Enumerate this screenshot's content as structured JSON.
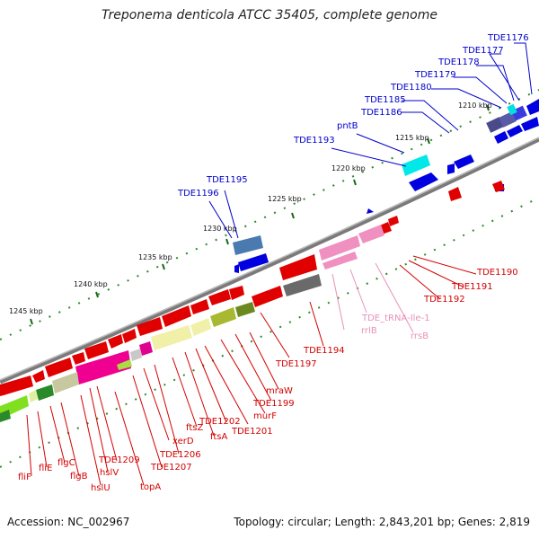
{
  "title": "Treponema denticola ATCC 35405, complete genome",
  "footer": {
    "accession": "Accession: NC_002967",
    "topology": "Topology: circular; Length: 2,843,201 bp; Genes: 2,819"
  },
  "map": {
    "kbp_ticks": [
      "1210 kbp",
      "1215 kbp",
      "1220 kbp",
      "1225 kbp",
      "1230 kbp",
      "1235 kbp",
      "1240 kbp",
      "1245 kbp"
    ],
    "colors": {
      "backbone": "#888888",
      "ruler": "#2a8a2a",
      "forward_label": "#0000cc",
      "reverse_label": "#d40000",
      "rna_label": "#e890b8"
    },
    "labels_top": [
      "TDE1176",
      "TDE1177",
      "TDE1178",
      "TDE1179",
      "TDE1180",
      "TDE1185",
      "TDE1186",
      "pntB",
      "TDE1193",
      "TDE1195",
      "TDE1196"
    ],
    "labels_bottom": [
      "TDE1190",
      "TDE1191",
      "TDE1192",
      "rrsB",
      "TDE_tRNA-Ile-1",
      "rrlB",
      "TDE1194",
      "TDE1197",
      "mraW",
      "TDE1199",
      "murF",
      "TDE1201",
      "TDE1202",
      "ftsA",
      "ftsZ",
      "TDE1206",
      "xerD",
      "TDE1207",
      "TDE1209",
      "topA",
      "hslV",
      "hslU",
      "flgB",
      "flgC",
      "fliE",
      "fliF"
    ]
  }
}
